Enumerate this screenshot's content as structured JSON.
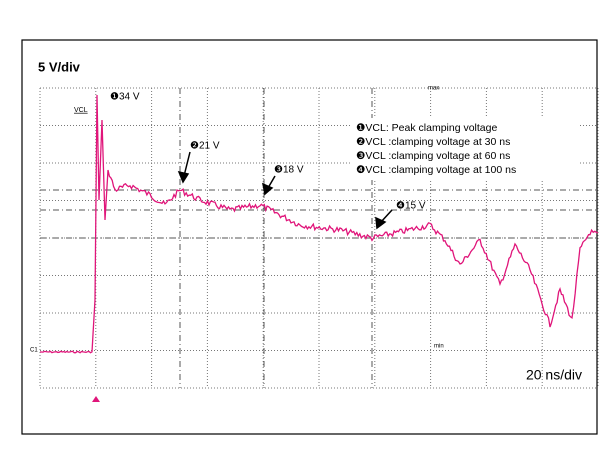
{
  "scale": {
    "vertical": "5 V/div",
    "horizontal": "20 ns/div"
  },
  "markers": {
    "vcl": "VCL",
    "channel": "C1",
    "max": "max",
    "min": "min"
  },
  "annotations": [
    "❶34 V",
    "❷21 V",
    "❸18 V",
    "❹15 V"
  ],
  "legend": [
    "❶VCL: Peak clamping  voltage",
    "❷VCL :clamping voltage at 30 ns",
    "❸VCL :clamping voltage at 60 ns",
    "❹VCL :clamping voltage at 100 ns"
  ]
}
